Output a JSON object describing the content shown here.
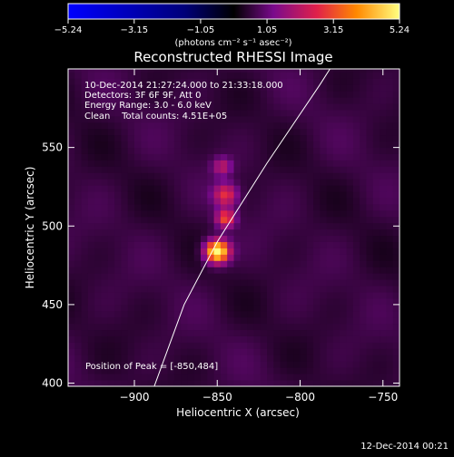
{
  "chart_data": {
    "type": "heatmap",
    "title": "Reconstructed RHESSI Image",
    "xlabel": "Heliocentric X (arcsec)",
    "ylabel": "Heliocentric Y (arcsec)",
    "xlim": [
      -940,
      -740
    ],
    "ylim": [
      398,
      600
    ],
    "xticks": [
      -900,
      -850,
      -800,
      -750
    ],
    "yticks": [
      400,
      450,
      500,
      550
    ],
    "xtick_labels": [
      "−900",
      "−850",
      "−800",
      "−750"
    ],
    "ytick_labels": [
      "400",
      "450",
      "500",
      "550"
    ],
    "colorbar": {
      "min": -5.24,
      "max": 5.24,
      "ticks": [
        -5.24,
        -3.15,
        -1.05,
        1.05,
        3.15,
        5.24
      ],
      "tick_labels": [
        "−5.24",
        "−3.15",
        "−1.05",
        "1.05",
        "3.15",
        "5.24"
      ],
      "unit_label": "(photons cm⁻² s⁻¹ asec⁻²)"
    },
    "annotations": [
      "10-Dec-2014 21:27:24.000 to 21:33:18.000",
      "Detectors: 3F 6F 9F, Att 0",
      "Energy Range: 3.0 - 6.0 keV",
      "Clean    Total counts: 4.51E+05"
    ],
    "peak_label": "Position of Peak = [-850,484]",
    "peak": [
      -850,
      484
    ],
    "sources": [
      {
        "x": -850,
        "y": 484,
        "sigma": 5,
        "amp": 5.24
      },
      {
        "x": -845,
        "y": 505,
        "sigma": 4,
        "amp": 2.6
      },
      {
        "x": -845,
        "y": 520,
        "sigma": 5,
        "amp": 2.2
      },
      {
        "x": -847,
        "y": 538,
        "sigma": 4,
        "amp": 1.5
      }
    ],
    "limb": [
      [
        -888,
        398
      ],
      [
        -870,
        450
      ],
      [
        -850,
        490
      ],
      [
        -820,
        540
      ],
      [
        -788,
        590
      ],
      [
        -782,
        600
      ]
    ]
  },
  "footer_date": "12-Dec-2014 00:21"
}
